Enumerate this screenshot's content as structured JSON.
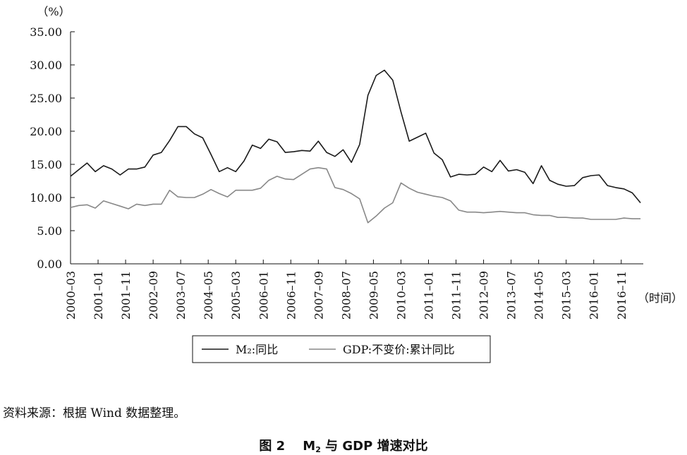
{
  "chart_data": {
    "type": "line",
    "y_unit_label": "（%）",
    "x_unit_label": "（时间）",
    "ylim": [
      0,
      35
    ],
    "y_ticks": [
      "0.00",
      "5.00",
      "10.00",
      "15.00",
      "20.00",
      "25.00",
      "30.00",
      "35.00"
    ],
    "x_tick_labels": [
      "2000–03",
      "2001–01",
      "2001–11",
      "2002–09",
      "2003–07",
      "2004–05",
      "2005–03",
      "2006–01",
      "2006–11",
      "2007–09",
      "2008–07",
      "2009–05",
      "2010–03",
      "2011–01",
      "2011–11",
      "2012–09",
      "2013–07",
      "2014–05",
      "2015–03",
      "2016–01",
      "2016–11"
    ],
    "x_tick_index": [
      0,
      10,
      20,
      30,
      40,
      50,
      60,
      70,
      80,
      90,
      100,
      110,
      120,
      130,
      140,
      150,
      160,
      170,
      180,
      190,
      200
    ],
    "x_max_index": 208,
    "grid": false,
    "legend_position": "bottom-center",
    "series": [
      {
        "name": "M₂:同比",
        "color": "#1a1a1a",
        "x": [
          0,
          3,
          6,
          9,
          12,
          15,
          18,
          21,
          24,
          27,
          30,
          33,
          36,
          39,
          42,
          45,
          48,
          51,
          54,
          57,
          60,
          63,
          66,
          69,
          72,
          75,
          78,
          81,
          84,
          87,
          90,
          93,
          96,
          99,
          102,
          105,
          108,
          111,
          114,
          117,
          120,
          123,
          126,
          129,
          132,
          135,
          138,
          141,
          144,
          147,
          150,
          153,
          156,
          159,
          162,
          165,
          168,
          171,
          174,
          177,
          180,
          183,
          186,
          189,
          192,
          195,
          198,
          201,
          204,
          207
        ],
        "values": [
          13.2,
          14.2,
          15.2,
          13.9,
          14.8,
          14.3,
          13.4,
          14.3,
          14.3,
          14.6,
          16.4,
          16.8,
          18.6,
          20.7,
          20.7,
          19.6,
          19.0,
          16.5,
          13.9,
          14.5,
          13.9,
          15.5,
          17.9,
          17.4,
          18.8,
          18.4,
          16.8,
          16.9,
          17.1,
          17.0,
          18.5,
          16.8,
          16.2,
          17.2,
          15.3,
          18.0,
          25.4,
          28.4,
          29.2,
          27.7,
          22.9,
          18.5,
          19.1,
          19.7,
          16.7,
          15.7,
          13.1,
          13.5,
          13.4,
          13.5,
          14.6,
          13.9,
          15.6,
          14.0,
          14.2,
          13.8,
          12.1,
          14.8,
          12.6,
          12.0,
          11.7,
          11.8,
          13.0,
          13.3,
          13.4,
          11.8,
          11.5,
          11.3,
          10.7,
          9.2
        ]
      },
      {
        "name": "GDP:不变价:累计同比",
        "color": "#888888",
        "x": [
          0,
          3,
          6,
          9,
          12,
          15,
          18,
          21,
          24,
          27,
          30,
          33,
          36,
          39,
          42,
          45,
          48,
          51,
          54,
          57,
          60,
          63,
          66,
          69,
          72,
          75,
          78,
          81,
          84,
          87,
          90,
          93,
          96,
          99,
          102,
          105,
          108,
          111,
          114,
          117,
          120,
          123,
          126,
          129,
          132,
          135,
          138,
          141,
          144,
          147,
          150,
          153,
          156,
          159,
          162,
          165,
          168,
          171,
          174,
          177,
          180,
          183,
          186,
          189,
          192,
          195,
          198,
          201,
          204,
          207
        ],
        "values": [
          8.5,
          8.8,
          8.9,
          8.4,
          9.5,
          9.1,
          8.7,
          8.3,
          9.0,
          8.8,
          9.0,
          9.0,
          11.1,
          10.1,
          10.0,
          10.0,
          10.5,
          11.2,
          10.6,
          10.1,
          11.1,
          11.1,
          11.1,
          11.4,
          12.6,
          13.2,
          12.8,
          12.7,
          13.5,
          14.3,
          14.5,
          14.3,
          11.5,
          11.2,
          10.6,
          9.8,
          6.2,
          7.2,
          8.4,
          9.2,
          12.2,
          11.4,
          10.8,
          10.5,
          10.2,
          10.0,
          9.5,
          8.1,
          7.8,
          7.8,
          7.7,
          7.8,
          7.9,
          7.8,
          7.7,
          7.7,
          7.4,
          7.3,
          7.3,
          7.0,
          7.0,
          6.9,
          6.9,
          6.7,
          6.7,
          6.7,
          6.7,
          6.9,
          6.8,
          6.8
        ]
      }
    ]
  },
  "source_note": "资料来源：根据 Wind 数据整理。",
  "caption": {
    "label": "图 2",
    "m": "M",
    "m_sub": "2",
    "rest": " 与 GDP 增速对比"
  }
}
